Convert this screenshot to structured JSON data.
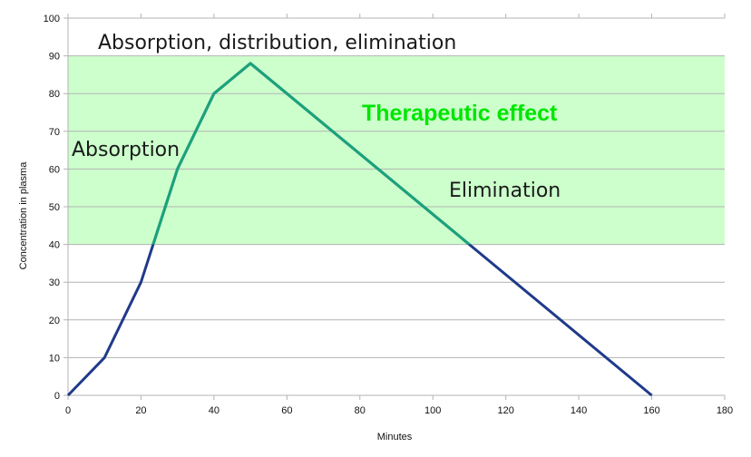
{
  "chart_data": {
    "type": "line",
    "title": "",
    "xlabel": "Minutes",
    "ylabel": "Concentration in plasma",
    "xlim": [
      0,
      180
    ],
    "ylim": [
      0,
      100
    ],
    "x_ticks": [
      "0",
      "20",
      "40",
      "60",
      "80",
      "100",
      "120",
      "140",
      "160",
      "180"
    ],
    "y_ticks": [
      "0",
      "10",
      "20",
      "30",
      "40",
      "50",
      "60",
      "70",
      "80",
      "90",
      "100"
    ],
    "grid": true,
    "series": [
      {
        "x": [
          0,
          10,
          20,
          30,
          40,
          50,
          160
        ],
        "y": [
          0,
          10,
          30,
          60,
          80,
          88,
          0
        ]
      }
    ],
    "band": {
      "y_range": [
        40,
        90
      ],
      "label": "Therapeutic effect"
    },
    "annotations": [
      {
        "text": "Absorption, distribution, elimination"
      },
      {
        "text": "Absorption"
      },
      {
        "text": "Elimination"
      }
    ],
    "colors": {
      "line_outside_band": "#1f3a8a",
      "line_inside_band": "#1aa37a",
      "band_fill": "#ccffcc",
      "band_label": "#00e600",
      "grid": "#b3b3b3"
    }
  }
}
